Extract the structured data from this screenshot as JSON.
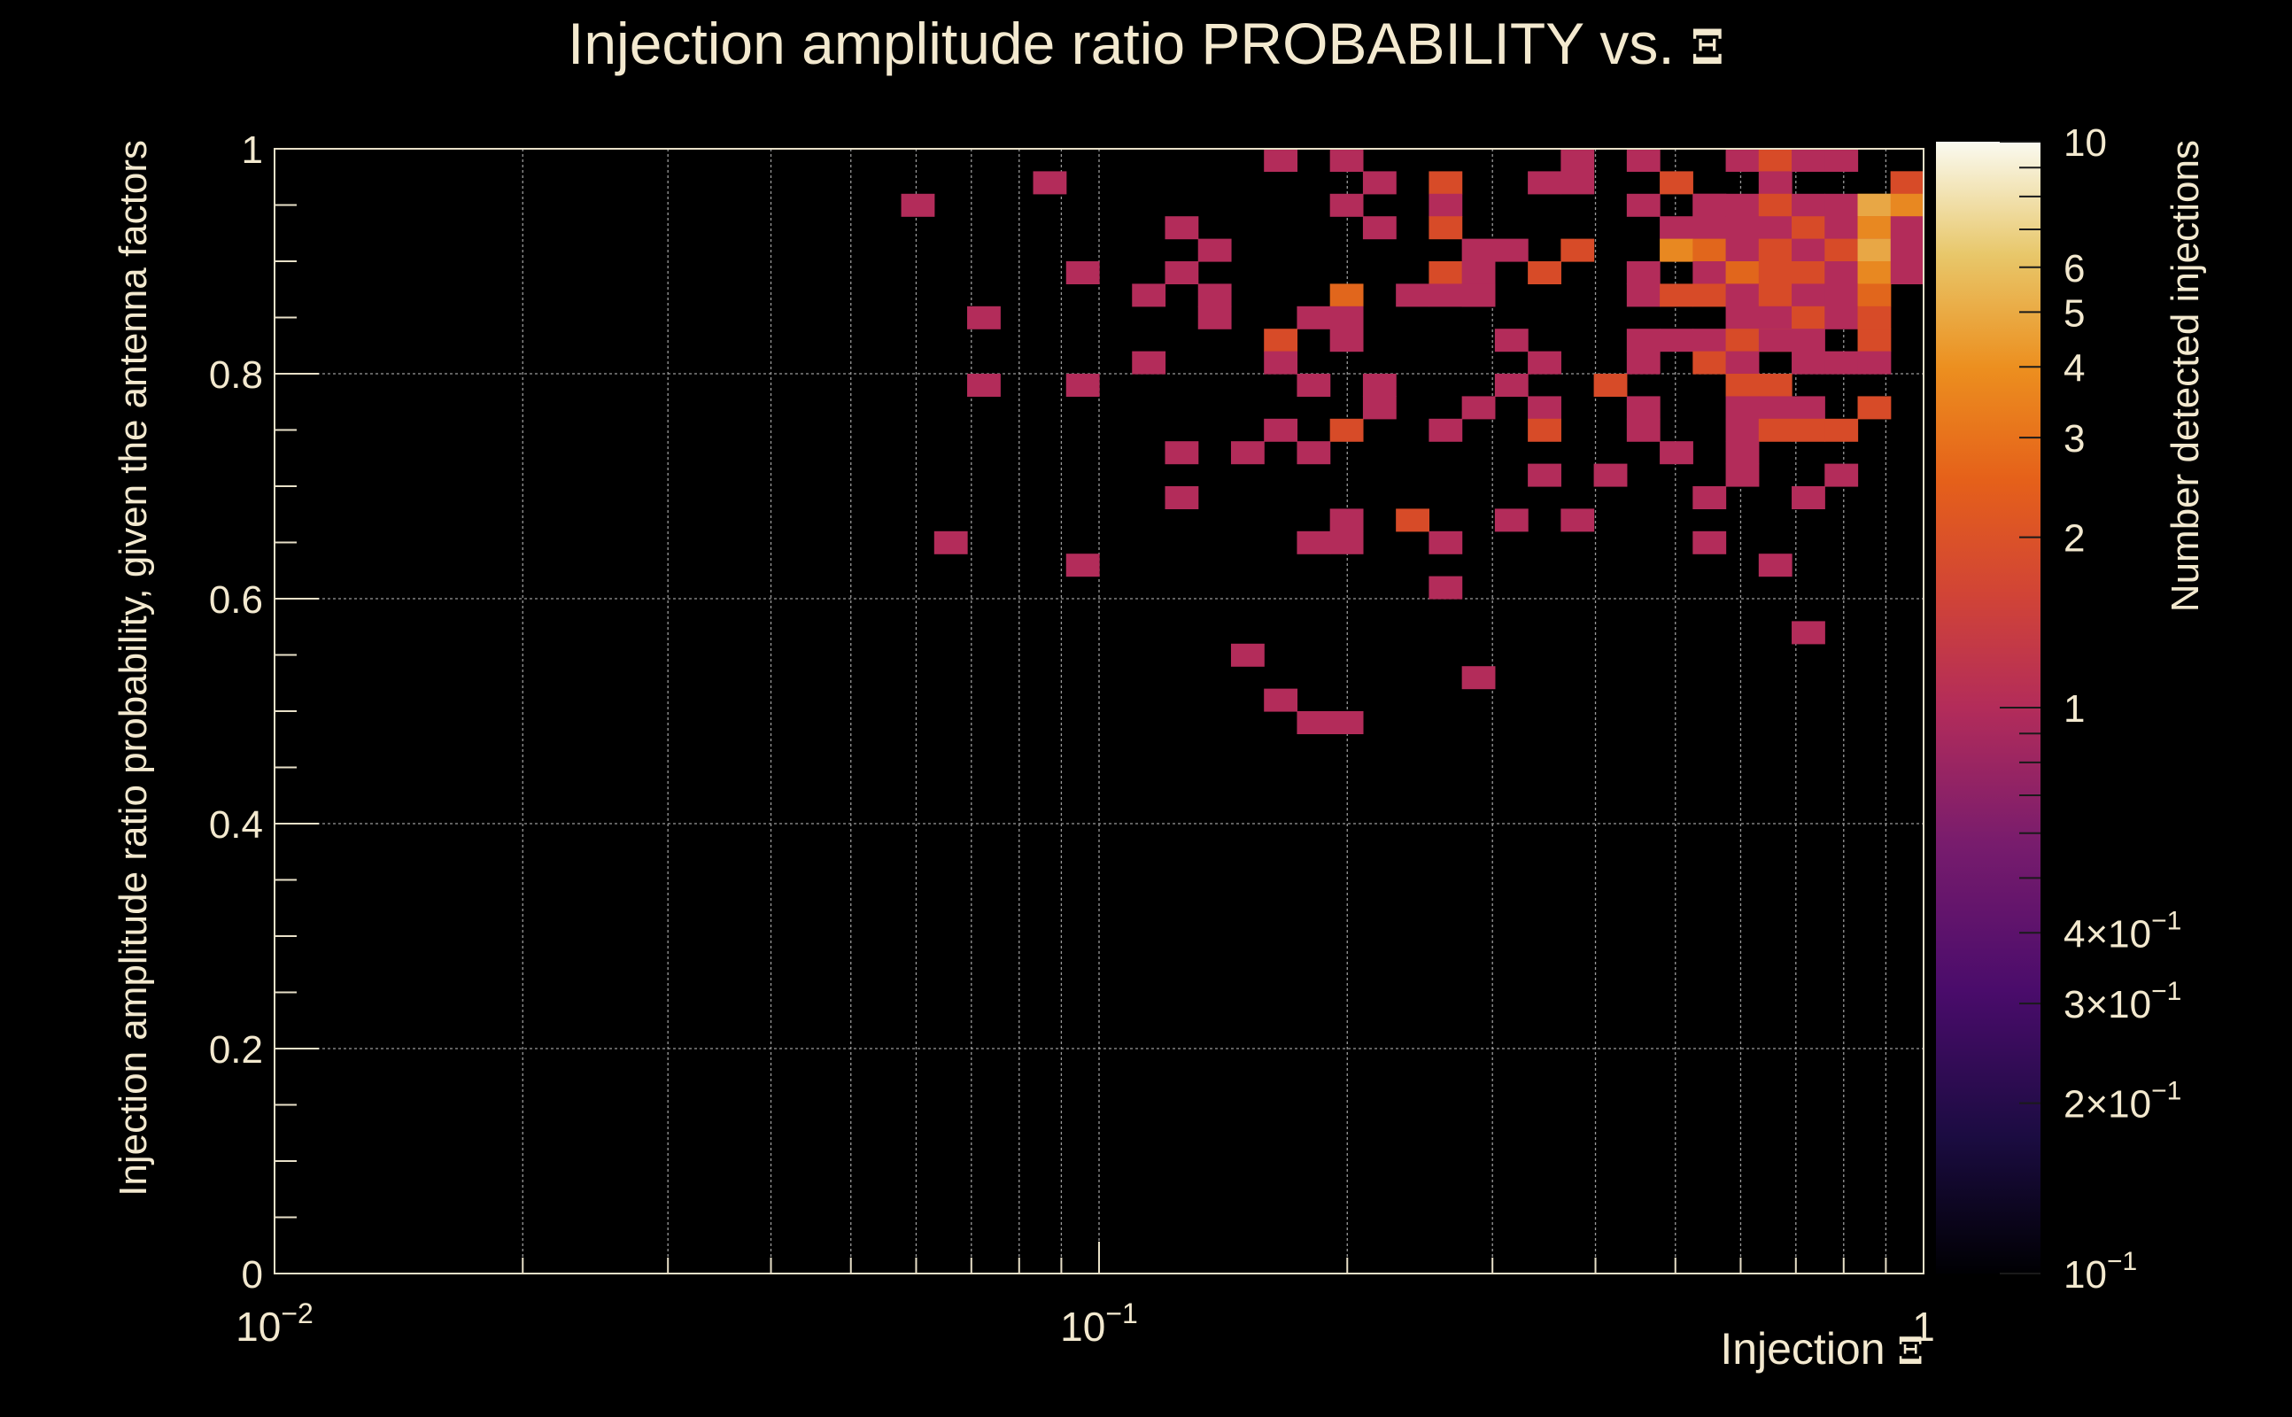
{
  "chart_data": {
    "type": "heatmap",
    "title_main": "Injection amplitude ratio PROBABILITY vs. ",
    "title_symbol": "Ξ",
    "xlabel_main": "Injection ",
    "xlabel_symbol": "Ξ",
    "ylabel": "Injection amplitude ratio probability, given the antenna factors",
    "zlabel": "Number detected injections",
    "x_scale": "log",
    "xlim": [
      0.01,
      1
    ],
    "ylim": [
      0,
      1
    ],
    "zlim": [
      0.1,
      10
    ],
    "z_scale": "log",
    "grid": true,
    "x_tick_labels": [
      {
        "value": 0.01,
        "label": "10",
        "exp": "−2"
      },
      {
        "value": 0.1,
        "label": "10",
        "exp": "−1"
      },
      {
        "value": 1,
        "label": "1",
        "exp": ""
      }
    ],
    "y_tick_labels": [
      {
        "value": 0,
        "label": "0"
      },
      {
        "value": 0.2,
        "label": "0.2"
      },
      {
        "value": 0.4,
        "label": "0.4"
      },
      {
        "value": 0.6,
        "label": "0.6"
      },
      {
        "value": 0.8,
        "label": "0.8"
      },
      {
        "value": 1,
        "label": "1"
      }
    ],
    "z_tick_labels": [
      {
        "value": 10,
        "label": "10",
        "exp": ""
      },
      {
        "value": 6,
        "label": "6",
        "exp": ""
      },
      {
        "value": 5,
        "label": "5",
        "exp": ""
      },
      {
        "value": 4,
        "label": "4",
        "exp": ""
      },
      {
        "value": 3,
        "label": "3",
        "exp": ""
      },
      {
        "value": 2,
        "label": "2",
        "exp": ""
      },
      {
        "value": 1,
        "label": "1",
        "exp": ""
      },
      {
        "value": 0.4,
        "label": "4×10",
        "exp": "−1"
      },
      {
        "value": 0.3,
        "label": "3×10",
        "exp": "−1"
      },
      {
        "value": 0.2,
        "label": "2×10",
        "exp": "−1"
      },
      {
        "value": 0.1,
        "label": "10",
        "exp": "−1"
      }
    ],
    "x_bins": 50,
    "y_bins": 50,
    "cells": [
      [
        0.168,
        0.99,
        1
      ],
      [
        0.205,
        0.99,
        1
      ],
      [
        0.375,
        0.99,
        1
      ],
      [
        0.459,
        0.99,
        1
      ],
      [
        0.619,
        0.99,
        1
      ],
      [
        0.681,
        0.99,
        2
      ],
      [
        0.751,
        0.99,
        1
      ],
      [
        0.829,
        0.99,
        1
      ],
      [
        0.088,
        0.97,
        1
      ],
      [
        0.221,
        0.97,
        1
      ],
      [
        0.263,
        0.97,
        2
      ],
      [
        0.341,
        0.97,
        1
      ],
      [
        0.375,
        0.97,
        1
      ],
      [
        0.505,
        0.97,
        2
      ],
      [
        0.681,
        0.97,
        1
      ],
      [
        0.913,
        0.97,
        2
      ],
      [
        0.958,
        0.97,
        2
      ],
      [
        0.061,
        0.95,
        1
      ],
      [
        0.201,
        0.95,
        1
      ],
      [
        0.26,
        0.95,
        1
      ],
      [
        0.441,
        0.95,
        1
      ],
      [
        0.528,
        0.95,
        1
      ],
      [
        0.563,
        0.95,
        1
      ],
      [
        0.619,
        0.95,
        1
      ],
      [
        0.665,
        0.95,
        2
      ],
      [
        0.738,
        0.95,
        1
      ],
      [
        0.795,
        0.95,
        1
      ],
      [
        0.835,
        0.95,
        4
      ],
      [
        0.88,
        0.95,
        5
      ],
      [
        0.958,
        0.95,
        4
      ],
      [
        0.122,
        0.93,
        1
      ],
      [
        0.221,
        0.93,
        1
      ],
      [
        0.263,
        0.93,
        2
      ],
      [
        0.505,
        0.93,
        1
      ],
      [
        0.56,
        0.93,
        1
      ],
      [
        0.608,
        0.93,
        1
      ],
      [
        0.665,
        0.93,
        1
      ],
      [
        0.751,
        0.93,
        2
      ],
      [
        0.795,
        0.93,
        1
      ],
      [
        0.857,
        0.93,
        3
      ],
      [
        0.895,
        0.93,
        4
      ],
      [
        0.958,
        0.93,
        1
      ],
      [
        0.134,
        0.91,
        1
      ],
      [
        0.3,
        0.91,
        1
      ],
      [
        0.331,
        0.91,
        1
      ],
      [
        0.375,
        0.91,
        2
      ],
      [
        0.515,
        0.91,
        4
      ],
      [
        0.563,
        0.91,
        3
      ],
      [
        0.619,
        0.91,
        1
      ],
      [
        0.665,
        0.91,
        2
      ],
      [
        0.738,
        0.91,
        1
      ],
      [
        0.795,
        0.91,
        2
      ],
      [
        0.857,
        0.91,
        1
      ],
      [
        0.895,
        0.91,
        5
      ],
      [
        0.958,
        0.91,
        1
      ],
      [
        0.095,
        0.89,
        1
      ],
      [
        0.122,
        0.89,
        1
      ],
      [
        0.263,
        0.89,
        2
      ],
      [
        0.29,
        0.89,
        1
      ],
      [
        0.341,
        0.89,
        2
      ],
      [
        0.441,
        0.89,
        1
      ],
      [
        0.56,
        0.89,
        1
      ],
      [
        0.608,
        0.89,
        3
      ],
      [
        0.665,
        0.89,
        2
      ],
      [
        0.738,
        0.89,
        2
      ],
      [
        0.795,
        0.89,
        1
      ],
      [
        0.88,
        0.89,
        4
      ],
      [
        0.958,
        0.89,
        1
      ],
      [
        0.115,
        0.87,
        1
      ],
      [
        0.134,
        0.87,
        1
      ],
      [
        0.201,
        0.87,
        3
      ],
      [
        0.242,
        0.87,
        1
      ],
      [
        0.263,
        0.87,
        1
      ],
      [
        0.281,
        0.87,
        1
      ],
      [
        0.3,
        0.87,
        1
      ],
      [
        0.459,
        0.87,
        1
      ],
      [
        0.515,
        0.87,
        2
      ],
      [
        0.545,
        0.87,
        2
      ],
      [
        0.608,
        0.87,
        1
      ],
      [
        0.681,
        0.87,
        2
      ],
      [
        0.751,
        0.87,
        1
      ],
      [
        0.829,
        0.87,
        1
      ],
      [
        0.88,
        0.87,
        3
      ],
      [
        0.074,
        0.85,
        1
      ],
      [
        0.134,
        0.85,
        1
      ],
      [
        0.181,
        0.85,
        1
      ],
      [
        0.201,
        0.85,
        1
      ],
      [
        0.608,
        0.85,
        1
      ],
      [
        0.665,
        0.85,
        1
      ],
      [
        0.751,
        0.85,
        2
      ],
      [
        0.829,
        0.85,
        1
      ],
      [
        0.88,
        0.85,
        2
      ],
      [
        0.168,
        0.83,
        2
      ],
      [
        0.201,
        0.83,
        1
      ],
      [
        0.319,
        0.83,
        1
      ],
      [
        0.441,
        0.83,
        1
      ],
      [
        0.481,
        0.83,
        1
      ],
      [
        0.528,
        0.83,
        1
      ],
      [
        0.585,
        0.83,
        2
      ],
      [
        0.65,
        0.83,
        3
      ],
      [
        0.681,
        0.83,
        1
      ],
      [
        0.751,
        0.83,
        1
      ],
      [
        0.88,
        0.83,
        2
      ],
      [
        0.115,
        0.81,
        1
      ],
      [
        0.168,
        0.81,
        1
      ],
      [
        0.349,
        0.81,
        1
      ],
      [
        0.459,
        0.81,
        1
      ],
      [
        0.545,
        0.81,
        2
      ],
      [
        0.585,
        0.81,
        1
      ],
      [
        0.738,
        0.81,
        1
      ],
      [
        0.829,
        0.81,
        1
      ],
      [
        0.88,
        0.81,
        1
      ],
      [
        0.074,
        0.79,
        1
      ],
      [
        0.095,
        0.79,
        1
      ],
      [
        0.187,
        0.79,
        1
      ],
      [
        0.221,
        0.79,
        1
      ],
      [
        0.322,
        0.79,
        1
      ],
      [
        0.401,
        0.79,
        2
      ],
      [
        0.608,
        0.79,
        2
      ],
      [
        0.681,
        0.79,
        2
      ],
      [
        0.221,
        0.77,
        1
      ],
      [
        0.281,
        0.77,
        1
      ],
      [
        0.349,
        0.77,
        1
      ],
      [
        0.441,
        0.77,
        1
      ],
      [
        0.608,
        0.77,
        1
      ],
      [
        0.65,
        0.77,
        1
      ],
      [
        0.738,
        0.77,
        1
      ],
      [
        0.88,
        0.77,
        2
      ],
      [
        0.168,
        0.75,
        1
      ],
      [
        0.201,
        0.75,
        2
      ],
      [
        0.263,
        0.75,
        1
      ],
      [
        0.349,
        0.75,
        2
      ],
      [
        0.459,
        0.75,
        1
      ],
      [
        0.608,
        0.75,
        1
      ],
      [
        0.681,
        0.75,
        2
      ],
      [
        0.751,
        0.75,
        2
      ],
      [
        0.829,
        0.75,
        2
      ],
      [
        0.122,
        0.73,
        1
      ],
      [
        0.152,
        0.73,
        1
      ],
      [
        0.187,
        0.73,
        1
      ],
      [
        0.505,
        0.73,
        1
      ],
      [
        0.608,
        0.73,
        1
      ],
      [
        0.341,
        0.71,
        1
      ],
      [
        0.401,
        0.71,
        1
      ],
      [
        0.585,
        0.71,
        1
      ],
      [
        0.795,
        0.71,
        1
      ],
      [
        0.122,
        0.69,
        1
      ],
      [
        0.545,
        0.69,
        1
      ],
      [
        0.738,
        0.69,
        1
      ],
      [
        0.201,
        0.67,
        1
      ],
      [
        0.242,
        0.67,
        2
      ],
      [
        0.319,
        0.67,
        1
      ],
      [
        0.375,
        0.67,
        1
      ],
      [
        0.067,
        0.65,
        1
      ],
      [
        0.187,
        0.65,
        1
      ],
      [
        0.201,
        0.65,
        1
      ],
      [
        0.263,
        0.65,
        1
      ],
      [
        0.528,
        0.65,
        1
      ],
      [
        0.095,
        0.63,
        1
      ],
      [
        0.65,
        0.63,
        1
      ],
      [
        0.263,
        0.61,
        1
      ],
      [
        0.738,
        0.57,
        1
      ],
      [
        0.152,
        0.55,
        1
      ],
      [
        0.29,
        0.53,
        1
      ],
      [
        0.168,
        0.51,
        1
      ],
      [
        0.181,
        0.49,
        1
      ],
      [
        0.201,
        0.49,
        1
      ]
    ]
  }
}
